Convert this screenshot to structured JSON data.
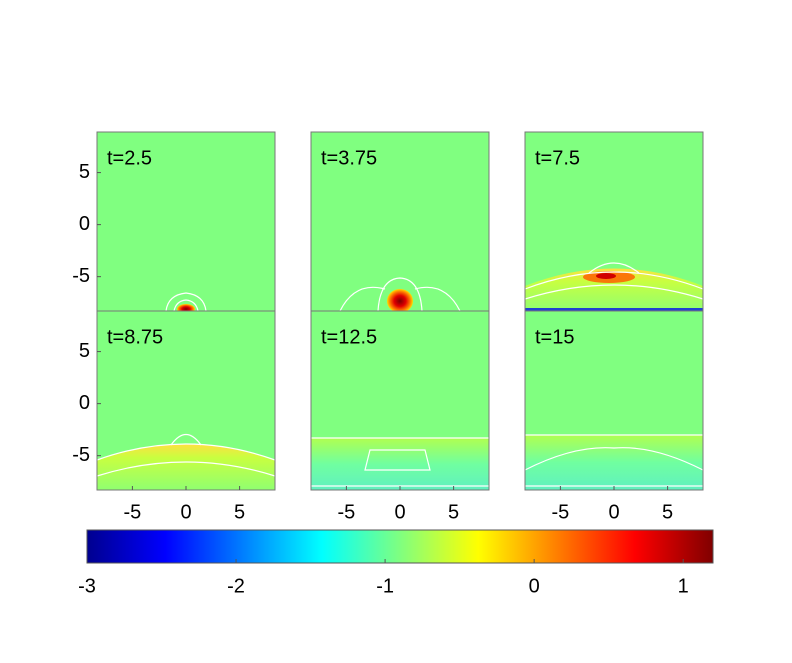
{
  "chart_data": [
    {
      "type": "contour",
      "title": "t=2.5",
      "xlim": [
        -8.3,
        8.3
      ],
      "ylim": [
        -8.3,
        8.9
      ],
      "yticks": [
        -5,
        0,
        5
      ]
    },
    {
      "type": "contour",
      "title": "t=3.75",
      "xlim": [
        -8.3,
        8.3
      ],
      "ylim": [
        -8.3,
        8.9
      ]
    },
    {
      "type": "contour",
      "title": "t=7.5",
      "xlim": [
        -8.3,
        8.3
      ],
      "ylim": [
        -8.3,
        8.9
      ]
    },
    {
      "type": "contour",
      "title": "t=8.75",
      "xlim": [
        -8.3,
        8.3
      ],
      "ylim": [
        -8.3,
        8.9
      ],
      "xticks": [
        -5,
        0,
        5
      ],
      "yticks": [
        -5,
        0,
        5
      ]
    },
    {
      "type": "contour",
      "title": "t=12.5",
      "xlim": [
        -8.3,
        8.3
      ],
      "ylim": [
        -8.3,
        8.9
      ],
      "xticks": [
        -5,
        0,
        5
      ]
    },
    {
      "type": "contour",
      "title": "t=15",
      "xlim": [
        -8.3,
        8.3
      ],
      "ylim": [
        -8.3,
        8.9
      ],
      "xticks": [
        -5,
        0,
        5
      ]
    },
    {
      "type": "colorbar",
      "colormap": "jet",
      "xlim": [
        -3,
        1.2
      ],
      "xticks": [
        -3,
        -2,
        -1,
        0,
        1
      ]
    }
  ]
}
